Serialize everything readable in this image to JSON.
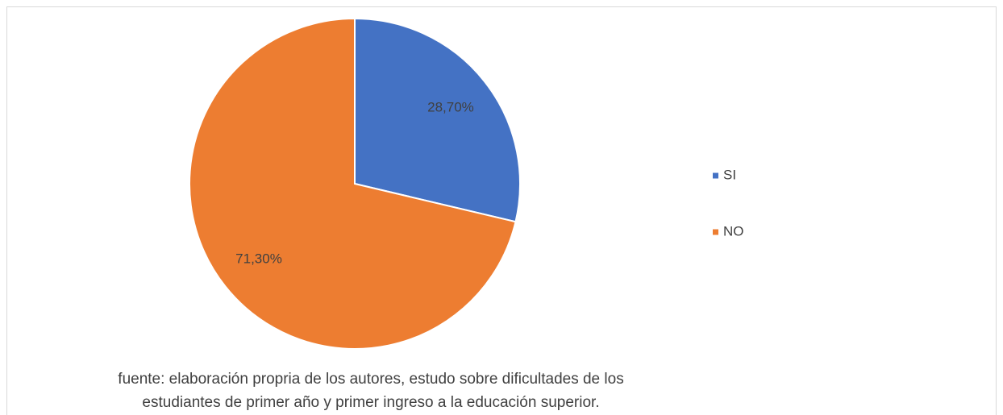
{
  "chart_data": {
    "type": "pie",
    "categories": [
      "SI",
      "NO"
    ],
    "values": [
      28.7,
      71.3
    ],
    "value_labels": [
      "28,70%",
      "71,30%"
    ],
    "colors": [
      "#4472c4",
      "#ed7d31"
    ],
    "legend": "right",
    "caption": [
      "fuente: elaboración propria de los autores, estudo sobre dificultades de los",
      "estudiantes de primer año y primer ingreso a la educación superior."
    ]
  }
}
